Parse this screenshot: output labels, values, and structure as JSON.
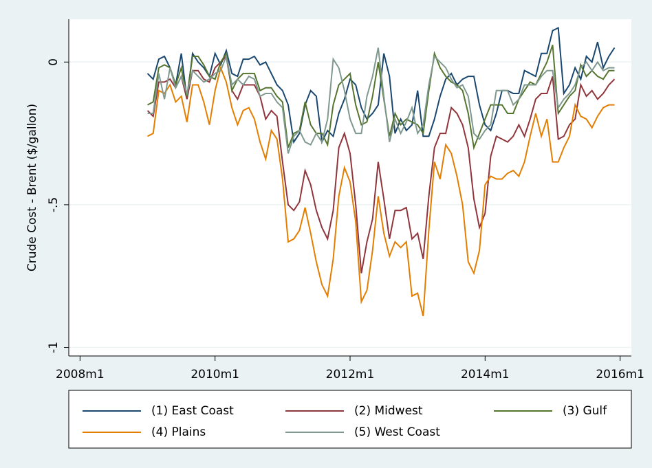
{
  "chart_data": {
    "type": "line",
    "y_label": "Crude Cost - Brent ($/gallon)",
    "x": [
      "2009m1",
      "2009m2",
      "2009m3",
      "2009m4",
      "2009m5",
      "2009m6",
      "2009m7",
      "2009m8",
      "2009m9",
      "2009m10",
      "2009m11",
      "2009m12",
      "2010m1",
      "2010m2",
      "2010m3",
      "2010m4",
      "2010m5",
      "2010m6",
      "2010m7",
      "2010m8",
      "2010m9",
      "2010m10",
      "2010m11",
      "2010m12",
      "2011m1",
      "2011m2",
      "2011m3",
      "2011m4",
      "2011m5",
      "2011m6",
      "2011m7",
      "2011m8",
      "2011m9",
      "2011m10",
      "2011m11",
      "2011m12",
      "2012m1",
      "2012m2",
      "2012m3",
      "2012m4",
      "2012m5",
      "2012m6",
      "2012m7",
      "2012m8",
      "2012m9",
      "2012m10",
      "2012m11",
      "2012m12",
      "2013m1",
      "2013m2",
      "2013m3",
      "2013m4",
      "2013m5",
      "2013m6",
      "2013m7",
      "2013m8",
      "2013m9",
      "2013m10",
      "2013m11",
      "2013m12",
      "2014m1",
      "2014m2",
      "2014m3",
      "2014m4",
      "2014m5",
      "2014m6",
      "2014m7",
      "2014m8",
      "2014m9",
      "2014m10",
      "2014m11",
      "2014m12",
      "2015m1",
      "2015m2",
      "2015m3",
      "2015m4",
      "2015m5",
      "2015m6",
      "2015m7",
      "2015m8",
      "2015m9",
      "2015m10",
      "2015m11",
      "2015m12"
    ],
    "series": [
      {
        "name": "(1) East Coast",
        "color": "#1a476f",
        "values": [
          -0.04,
          -0.06,
          0.01,
          0.02,
          -0.02,
          -0.08,
          0.03,
          -0.13,
          0.03,
          0.0,
          -0.02,
          -0.05,
          0.03,
          -0.01,
          0.04,
          -0.04,
          -0.05,
          0.01,
          0.01,
          0.02,
          -0.01,
          0.0,
          -0.04,
          -0.08,
          -0.1,
          -0.15,
          -0.28,
          -0.25,
          -0.15,
          -0.1,
          -0.12,
          -0.28,
          -0.24,
          -0.26,
          -0.18,
          -0.13,
          -0.06,
          -0.08,
          -0.16,
          -0.2,
          -0.18,
          -0.15,
          0.03,
          -0.05,
          -0.25,
          -0.2,
          -0.24,
          -0.22,
          -0.1,
          -0.26,
          -0.26,
          -0.2,
          -0.12,
          -0.06,
          -0.04,
          -0.08,
          -0.06,
          -0.05,
          -0.05,
          -0.15,
          -0.22,
          -0.24,
          -0.18,
          -0.1,
          -0.1,
          -0.11,
          -0.11,
          -0.03,
          -0.04,
          -0.05,
          0.03,
          0.03,
          0.11,
          0.12,
          -0.11,
          -0.08,
          -0.02,
          -0.06,
          0.02,
          0.0,
          0.07,
          -0.02,
          0.02,
          0.05
        ]
      },
      {
        "name": "(2) Midwest",
        "color": "#90353b",
        "values": [
          -0.17,
          -0.19,
          -0.07,
          -0.07,
          -0.06,
          -0.09,
          -0.05,
          -0.13,
          -0.03,
          -0.03,
          -0.06,
          -0.07,
          -0.02,
          0.0,
          0.02,
          -0.1,
          -0.13,
          -0.08,
          -0.08,
          -0.08,
          -0.12,
          -0.2,
          -0.17,
          -0.19,
          -0.35,
          -0.5,
          -0.52,
          -0.49,
          -0.38,
          -0.43,
          -0.52,
          -0.58,
          -0.62,
          -0.52,
          -0.3,
          -0.25,
          -0.32,
          -0.5,
          -0.74,
          -0.63,
          -0.55,
          -0.35,
          -0.48,
          -0.62,
          -0.52,
          -0.52,
          -0.51,
          -0.62,
          -0.6,
          -0.69,
          -0.47,
          -0.3,
          -0.25,
          -0.25,
          -0.16,
          -0.18,
          -0.22,
          -0.3,
          -0.48,
          -0.58,
          -0.53,
          -0.33,
          -0.26,
          -0.27,
          -0.28,
          -0.26,
          -0.22,
          -0.26,
          -0.2,
          -0.13,
          -0.11,
          -0.11,
          -0.05,
          -0.27,
          -0.26,
          -0.22,
          -0.2,
          -0.08,
          -0.12,
          -0.1,
          -0.13,
          -0.11,
          -0.08,
          -0.06
        ]
      },
      {
        "name": "(3) Gulf",
        "color": "#55752f",
        "values": [
          -0.15,
          -0.14,
          -0.02,
          -0.01,
          -0.02,
          -0.08,
          -0.02,
          -0.12,
          0.02,
          0.02,
          -0.01,
          -0.05,
          -0.06,
          0.0,
          0.03,
          -0.1,
          -0.06,
          -0.04,
          -0.04,
          -0.04,
          -0.1,
          -0.09,
          -0.09,
          -0.12,
          -0.14,
          -0.3,
          -0.25,
          -0.24,
          -0.14,
          -0.22,
          -0.25,
          -0.25,
          -0.29,
          -0.15,
          -0.08,
          -0.06,
          -0.04,
          -0.15,
          -0.22,
          -0.21,
          -0.12,
          0.0,
          -0.13,
          -0.26,
          -0.18,
          -0.22,
          -0.2,
          -0.21,
          -0.22,
          -0.25,
          -0.1,
          0.03,
          -0.02,
          -0.05,
          -0.07,
          -0.08,
          -0.1,
          -0.18,
          -0.3,
          -0.25,
          -0.2,
          -0.15,
          -0.15,
          -0.15,
          -0.18,
          -0.18,
          -0.13,
          -0.1,
          -0.07,
          -0.08,
          -0.04,
          0.0,
          0.06,
          -0.18,
          -0.15,
          -0.12,
          -0.1,
          -0.01,
          -0.05,
          -0.03,
          -0.05,
          -0.06,
          -0.03,
          -0.03
        ]
      },
      {
        "name": "(4) Plains",
        "color": "#e37e00",
        "values": [
          -0.26,
          -0.25,
          -0.1,
          -0.11,
          -0.08,
          -0.14,
          -0.12,
          -0.21,
          -0.08,
          -0.08,
          -0.14,
          -0.22,
          -0.1,
          -0.02,
          -0.07,
          -0.16,
          -0.22,
          -0.17,
          -0.16,
          -0.2,
          -0.28,
          -0.34,
          -0.24,
          -0.27,
          -0.41,
          -0.63,
          -0.62,
          -0.59,
          -0.51,
          -0.6,
          -0.7,
          -0.78,
          -0.82,
          -0.69,
          -0.47,
          -0.37,
          -0.42,
          -0.56,
          -0.84,
          -0.8,
          -0.66,
          -0.47,
          -0.6,
          -0.68,
          -0.63,
          -0.65,
          -0.63,
          -0.82,
          -0.81,
          -0.89,
          -0.59,
          -0.35,
          -0.41,
          -0.29,
          -0.32,
          -0.4,
          -0.5,
          -0.7,
          -0.74,
          -0.66,
          -0.43,
          -0.4,
          -0.41,
          -0.41,
          -0.39,
          -0.38,
          -0.4,
          -0.35,
          -0.26,
          -0.18,
          -0.26,
          -0.2,
          -0.35,
          -0.35,
          -0.3,
          -0.26,
          -0.15,
          -0.19,
          -0.2,
          -0.23,
          -0.19,
          -0.16,
          -0.15,
          -0.15
        ]
      },
      {
        "name": "(5) West Coast",
        "color": "#7f998f",
        "values": [
          -0.18,
          -0.18,
          -0.04,
          -0.13,
          -0.02,
          -0.09,
          -0.05,
          -0.11,
          -0.03,
          -0.05,
          -0.07,
          -0.06,
          -0.04,
          -0.03,
          0.02,
          -0.08,
          -0.06,
          -0.08,
          -0.05,
          -0.06,
          -0.12,
          -0.11,
          -0.11,
          -0.14,
          -0.16,
          -0.32,
          -0.26,
          -0.24,
          -0.28,
          -0.29,
          -0.25,
          -0.28,
          -0.2,
          0.01,
          -0.02,
          -0.1,
          -0.2,
          -0.25,
          -0.25,
          -0.12,
          -0.05,
          0.05,
          -0.12,
          -0.28,
          -0.2,
          -0.25,
          -0.21,
          -0.16,
          -0.25,
          -0.22,
          -0.08,
          0.02,
          0.0,
          -0.02,
          -0.06,
          -0.09,
          -0.08,
          -0.12,
          -0.25,
          -0.27,
          -0.24,
          -0.22,
          -0.1,
          -0.1,
          -0.1,
          -0.15,
          -0.13,
          -0.08,
          -0.08,
          -0.08,
          -0.05,
          -0.03,
          -0.03,
          -0.16,
          -0.13,
          -0.11,
          -0.08,
          -0.02,
          0.0,
          -0.03,
          0.0,
          -0.03,
          -0.02,
          -0.02
        ]
      }
    ],
    "xlim": [
      "2007m11",
      "2016m3"
    ],
    "xticks": [
      "2008m1",
      "2010m1",
      "2012m1",
      "2014m1",
      "2016m1"
    ],
    "ylim": [
      -1.03,
      0.15
    ],
    "yticks": [
      -1,
      {
        "value": -0.5,
        "label": "-.5"
      },
      0
    ],
    "grid": true
  }
}
